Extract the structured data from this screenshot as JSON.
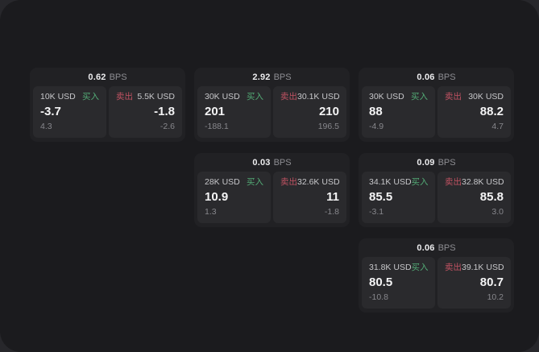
{
  "labels": {
    "bps_unit": "BPS",
    "buy": "买入",
    "sell": "卖出"
  },
  "colors": {
    "buy_green": "#53ab76",
    "sell_red": "#c05262",
    "surface_bg": "#1b1b1e",
    "card_bg": "#212124",
    "panel_bg": "#2a2a2d"
  },
  "cards": [
    {
      "bps": "0.62",
      "buy": {
        "size": "10K USD",
        "price": "-3.7",
        "sub": "4.3"
      },
      "sell": {
        "size": "5.5K USD",
        "price": "-1.8",
        "sub": "-2.6"
      }
    },
    {
      "bps": "2.92",
      "buy": {
        "size": "30K USD",
        "price": "201",
        "sub": "-188.1"
      },
      "sell": {
        "size": "30.1K USD",
        "price": "210",
        "sub": "196.5"
      }
    },
    {
      "bps": "0.06",
      "buy": {
        "size": "30K USD",
        "price": "88",
        "sub": "-4.9"
      },
      "sell": {
        "size": "30K USD",
        "price": "88.2",
        "sub": "4.7"
      }
    },
    {
      "bps": "0.03",
      "buy": {
        "size": "28K USD",
        "price": "10.9",
        "sub": "1.3"
      },
      "sell": {
        "size": "32.6K USD",
        "price": "11",
        "sub": "-1.8"
      }
    },
    {
      "bps": "0.09",
      "buy": {
        "size": "34.1K USD",
        "price": "85.5",
        "sub": "-3.1"
      },
      "sell": {
        "size": "32.8K USD",
        "price": "85.8",
        "sub": "3.0"
      }
    },
    {
      "bps": "0.06",
      "buy": {
        "size": "31.8K USD",
        "price": "80.5",
        "sub": "-10.8"
      },
      "sell": {
        "size": "39.1K USD",
        "price": "80.7",
        "sub": "10.2"
      }
    }
  ]
}
